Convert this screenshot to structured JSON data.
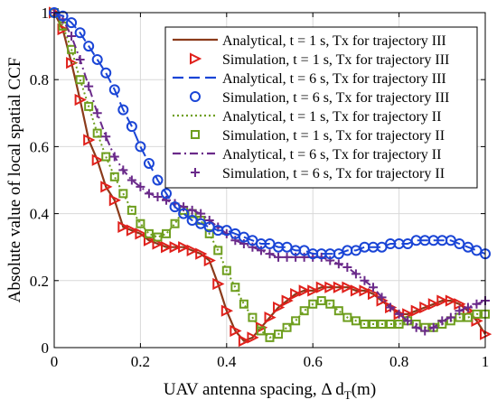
{
  "chart_data": {
    "type": "line",
    "title": "",
    "xlabel": "UAV antenna spacing, Δ d",
    "xlabel_sub": "T",
    "xlabel_suffix": "(m)",
    "ylabel": "Absolute value of local spatial CCF",
    "xlim": [
      0,
      1
    ],
    "ylim": [
      0,
      1
    ],
    "xticks": [
      0,
      0.2,
      0.4,
      0.6,
      0.8,
      1
    ],
    "yticks": [
      0,
      0.2,
      0.4,
      0.6,
      0.8,
      1
    ],
    "xtick_labels": [
      "0",
      "0.2",
      "0.4",
      "0.6",
      "0.8",
      "1"
    ],
    "ytick_labels": [
      "0",
      "0.2",
      "0.4",
      "0.6",
      "0.8",
      "1"
    ],
    "grid": true,
    "legend_position": "top-right",
    "series": [
      {
        "name": "Analytical, t = 1 s, Tx for trajectory III",
        "kind": "line",
        "color": "#8B3A1A",
        "dash": "solid",
        "x": [
          0,
          0.02,
          0.04,
          0.06,
          0.08,
          0.1,
          0.12,
          0.14,
          0.16,
          0.18,
          0.2,
          0.22,
          0.24,
          0.26,
          0.28,
          0.3,
          0.32,
          0.34,
          0.36,
          0.38,
          0.4,
          0.42,
          0.44,
          0.46,
          0.48,
          0.5,
          0.52,
          0.54,
          0.56,
          0.58,
          0.6,
          0.62,
          0.64,
          0.66,
          0.68,
          0.7,
          0.72,
          0.74,
          0.76,
          0.78,
          0.8,
          0.82,
          0.84,
          0.86,
          0.88,
          0.9,
          0.92,
          0.94,
          0.96,
          0.98,
          1.0
        ],
        "y": [
          1.0,
          0.95,
          0.85,
          0.74,
          0.62,
          0.56,
          0.48,
          0.44,
          0.36,
          0.35,
          0.34,
          0.32,
          0.31,
          0.3,
          0.3,
          0.3,
          0.29,
          0.28,
          0.26,
          0.19,
          0.11,
          0.05,
          0.02,
          0.03,
          0.06,
          0.09,
          0.12,
          0.14,
          0.16,
          0.17,
          0.17,
          0.18,
          0.18,
          0.18,
          0.18,
          0.17,
          0.17,
          0.16,
          0.14,
          0.12,
          0.1,
          0.1,
          0.11,
          0.12,
          0.13,
          0.14,
          0.14,
          0.13,
          0.11,
          0.08,
          0.04
        ]
      },
      {
        "name": "Simulation, t = 1 s, Tx for trajectory III",
        "kind": "marker",
        "marker": "triangle-right",
        "color": "#E0201B",
        "x": [
          0,
          0.02,
          0.04,
          0.06,
          0.08,
          0.1,
          0.12,
          0.14,
          0.16,
          0.18,
          0.2,
          0.22,
          0.24,
          0.26,
          0.28,
          0.3,
          0.32,
          0.34,
          0.36,
          0.38,
          0.4,
          0.42,
          0.44,
          0.46,
          0.48,
          0.5,
          0.52,
          0.54,
          0.56,
          0.58,
          0.6,
          0.62,
          0.64,
          0.66,
          0.68,
          0.7,
          0.72,
          0.74,
          0.76,
          0.78,
          0.8,
          0.82,
          0.84,
          0.86,
          0.88,
          0.9,
          0.92,
          0.94,
          0.96,
          0.98,
          1.0
        ],
        "y": [
          1.0,
          0.95,
          0.85,
          0.74,
          0.62,
          0.56,
          0.48,
          0.44,
          0.36,
          0.35,
          0.34,
          0.32,
          0.31,
          0.3,
          0.3,
          0.3,
          0.29,
          0.28,
          0.26,
          0.19,
          0.11,
          0.05,
          0.02,
          0.03,
          0.06,
          0.09,
          0.12,
          0.14,
          0.16,
          0.17,
          0.17,
          0.18,
          0.18,
          0.18,
          0.18,
          0.17,
          0.17,
          0.16,
          0.14,
          0.12,
          0.1,
          0.1,
          0.11,
          0.12,
          0.13,
          0.14,
          0.14,
          0.13,
          0.11,
          0.08,
          0.04
        ]
      },
      {
        "name": "Analytical, t = 6 s, Tx for trajectory III",
        "kind": "line",
        "color": "#1A45D6",
        "dash": "long-dash",
        "x": [
          0,
          0.02,
          0.04,
          0.06,
          0.08,
          0.1,
          0.12,
          0.14,
          0.16,
          0.18,
          0.2,
          0.22,
          0.24,
          0.26,
          0.28,
          0.3,
          0.32,
          0.34,
          0.36,
          0.38,
          0.4,
          0.42,
          0.44,
          0.46,
          0.48,
          0.5,
          0.52,
          0.54,
          0.56,
          0.58,
          0.6,
          0.62,
          0.64,
          0.66,
          0.68,
          0.7,
          0.72,
          0.74,
          0.76,
          0.78,
          0.8,
          0.82,
          0.84,
          0.86,
          0.88,
          0.9,
          0.92,
          0.94,
          0.96,
          0.98,
          1.0
        ],
        "y": [
          1.0,
          0.99,
          0.97,
          0.94,
          0.9,
          0.86,
          0.82,
          0.77,
          0.71,
          0.66,
          0.6,
          0.55,
          0.5,
          0.46,
          0.42,
          0.4,
          0.38,
          0.37,
          0.36,
          0.35,
          0.35,
          0.34,
          0.33,
          0.32,
          0.31,
          0.31,
          0.3,
          0.3,
          0.29,
          0.29,
          0.28,
          0.28,
          0.28,
          0.28,
          0.29,
          0.29,
          0.3,
          0.3,
          0.3,
          0.31,
          0.31,
          0.31,
          0.32,
          0.32,
          0.32,
          0.32,
          0.32,
          0.31,
          0.3,
          0.29,
          0.28
        ]
      },
      {
        "name": "Simulation, t = 6 s, Tx for trajectory III",
        "kind": "marker",
        "marker": "circle",
        "color": "#1A45D6",
        "x": [
          0,
          0.02,
          0.04,
          0.06,
          0.08,
          0.1,
          0.12,
          0.14,
          0.16,
          0.18,
          0.2,
          0.22,
          0.24,
          0.26,
          0.28,
          0.3,
          0.32,
          0.34,
          0.36,
          0.38,
          0.4,
          0.42,
          0.44,
          0.46,
          0.48,
          0.5,
          0.52,
          0.54,
          0.56,
          0.58,
          0.6,
          0.62,
          0.64,
          0.66,
          0.68,
          0.7,
          0.72,
          0.74,
          0.76,
          0.78,
          0.8,
          0.82,
          0.84,
          0.86,
          0.88,
          0.9,
          0.92,
          0.94,
          0.96,
          0.98,
          1.0
        ],
        "y": [
          1.0,
          0.99,
          0.97,
          0.94,
          0.9,
          0.86,
          0.82,
          0.77,
          0.71,
          0.66,
          0.6,
          0.55,
          0.5,
          0.46,
          0.42,
          0.4,
          0.38,
          0.37,
          0.36,
          0.35,
          0.35,
          0.34,
          0.33,
          0.32,
          0.31,
          0.31,
          0.3,
          0.3,
          0.29,
          0.29,
          0.28,
          0.28,
          0.28,
          0.28,
          0.29,
          0.29,
          0.3,
          0.3,
          0.3,
          0.31,
          0.31,
          0.31,
          0.32,
          0.32,
          0.32,
          0.32,
          0.32,
          0.31,
          0.3,
          0.29,
          0.28
        ]
      },
      {
        "name": "Analytical, t = 1 s, Tx for trajectory II",
        "kind": "line",
        "color": "#6E9E1E",
        "dash": "dotted",
        "x": [
          0,
          0.02,
          0.04,
          0.06,
          0.08,
          0.1,
          0.12,
          0.14,
          0.16,
          0.18,
          0.2,
          0.22,
          0.24,
          0.26,
          0.28,
          0.3,
          0.32,
          0.34,
          0.36,
          0.38,
          0.4,
          0.42,
          0.44,
          0.46,
          0.48,
          0.5,
          0.52,
          0.54,
          0.56,
          0.58,
          0.6,
          0.62,
          0.64,
          0.66,
          0.68,
          0.7,
          0.72,
          0.74,
          0.76,
          0.78,
          0.8,
          0.82,
          0.84,
          0.86,
          0.88,
          0.9,
          0.92,
          0.94,
          0.96,
          0.98,
          1.0
        ],
        "y": [
          1.0,
          0.96,
          0.89,
          0.8,
          0.72,
          0.64,
          0.57,
          0.51,
          0.46,
          0.41,
          0.37,
          0.34,
          0.33,
          0.34,
          0.37,
          0.41,
          0.4,
          0.38,
          0.34,
          0.29,
          0.23,
          0.18,
          0.13,
          0.09,
          0.05,
          0.03,
          0.04,
          0.06,
          0.08,
          0.11,
          0.13,
          0.14,
          0.13,
          0.11,
          0.09,
          0.08,
          0.07,
          0.07,
          0.07,
          0.07,
          0.07,
          0.08,
          0.07,
          0.06,
          0.06,
          0.07,
          0.08,
          0.09,
          0.09,
          0.1,
          0.1
        ]
      },
      {
        "name": "Simulation, t = 1 s, Tx for trajectory II",
        "kind": "marker",
        "marker": "square",
        "color": "#6E9E1E",
        "x": [
          0,
          0.02,
          0.04,
          0.06,
          0.08,
          0.1,
          0.12,
          0.14,
          0.16,
          0.18,
          0.2,
          0.22,
          0.24,
          0.26,
          0.28,
          0.3,
          0.32,
          0.34,
          0.36,
          0.38,
          0.4,
          0.42,
          0.44,
          0.46,
          0.48,
          0.5,
          0.52,
          0.54,
          0.56,
          0.58,
          0.6,
          0.62,
          0.64,
          0.66,
          0.68,
          0.7,
          0.72,
          0.74,
          0.76,
          0.78,
          0.8,
          0.82,
          0.84,
          0.86,
          0.88,
          0.9,
          0.92,
          0.94,
          0.96,
          0.98,
          1.0
        ],
        "y": [
          1.0,
          0.96,
          0.89,
          0.8,
          0.72,
          0.64,
          0.57,
          0.51,
          0.46,
          0.41,
          0.37,
          0.34,
          0.33,
          0.34,
          0.37,
          0.41,
          0.4,
          0.38,
          0.34,
          0.29,
          0.23,
          0.18,
          0.13,
          0.09,
          0.05,
          0.03,
          0.04,
          0.06,
          0.08,
          0.11,
          0.13,
          0.14,
          0.13,
          0.11,
          0.09,
          0.08,
          0.07,
          0.07,
          0.07,
          0.07,
          0.07,
          0.08,
          0.07,
          0.06,
          0.06,
          0.07,
          0.08,
          0.09,
          0.09,
          0.1,
          0.1
        ]
      },
      {
        "name": "Analytical, t = 6 s, Tx for trajectory II",
        "kind": "line",
        "color": "#6A2A8A",
        "dash": "dash-dot",
        "x": [
          0,
          0.02,
          0.04,
          0.06,
          0.08,
          0.1,
          0.12,
          0.14,
          0.16,
          0.18,
          0.2,
          0.22,
          0.24,
          0.26,
          0.28,
          0.3,
          0.32,
          0.34,
          0.36,
          0.38,
          0.4,
          0.42,
          0.44,
          0.46,
          0.48,
          0.5,
          0.52,
          0.54,
          0.56,
          0.58,
          0.6,
          0.62,
          0.64,
          0.66,
          0.68,
          0.7,
          0.72,
          0.74,
          0.76,
          0.78,
          0.8,
          0.82,
          0.84,
          0.86,
          0.88,
          0.9,
          0.92,
          0.94,
          0.96,
          0.98,
          1.0
        ],
        "y": [
          1.0,
          0.98,
          0.93,
          0.86,
          0.78,
          0.7,
          0.63,
          0.57,
          0.53,
          0.5,
          0.48,
          0.46,
          0.45,
          0.44,
          0.43,
          0.42,
          0.41,
          0.4,
          0.38,
          0.36,
          0.34,
          0.32,
          0.31,
          0.3,
          0.29,
          0.28,
          0.27,
          0.27,
          0.27,
          0.27,
          0.27,
          0.27,
          0.26,
          0.25,
          0.24,
          0.22,
          0.2,
          0.18,
          0.15,
          0.12,
          0.1,
          0.08,
          0.06,
          0.05,
          0.06,
          0.08,
          0.09,
          0.11,
          0.12,
          0.13,
          0.14
        ]
      },
      {
        "name": "Simulation, t = 6 s, Tx for trajectory II",
        "kind": "marker",
        "marker": "plus",
        "color": "#6A2A8A",
        "x": [
          0,
          0.02,
          0.04,
          0.06,
          0.08,
          0.1,
          0.12,
          0.14,
          0.16,
          0.18,
          0.2,
          0.22,
          0.24,
          0.26,
          0.28,
          0.3,
          0.32,
          0.34,
          0.36,
          0.38,
          0.4,
          0.42,
          0.44,
          0.46,
          0.48,
          0.5,
          0.52,
          0.54,
          0.56,
          0.58,
          0.6,
          0.62,
          0.64,
          0.66,
          0.68,
          0.7,
          0.72,
          0.74,
          0.76,
          0.78,
          0.8,
          0.82,
          0.84,
          0.86,
          0.88,
          0.9,
          0.92,
          0.94,
          0.96,
          0.98,
          1.0
        ],
        "y": [
          1.0,
          0.98,
          0.93,
          0.86,
          0.78,
          0.7,
          0.63,
          0.57,
          0.53,
          0.5,
          0.48,
          0.46,
          0.45,
          0.44,
          0.43,
          0.42,
          0.41,
          0.4,
          0.38,
          0.36,
          0.34,
          0.32,
          0.31,
          0.3,
          0.29,
          0.28,
          0.27,
          0.27,
          0.27,
          0.27,
          0.27,
          0.27,
          0.26,
          0.25,
          0.24,
          0.22,
          0.2,
          0.18,
          0.15,
          0.12,
          0.1,
          0.08,
          0.06,
          0.05,
          0.06,
          0.08,
          0.09,
          0.11,
          0.12,
          0.13,
          0.14
        ]
      }
    ]
  }
}
